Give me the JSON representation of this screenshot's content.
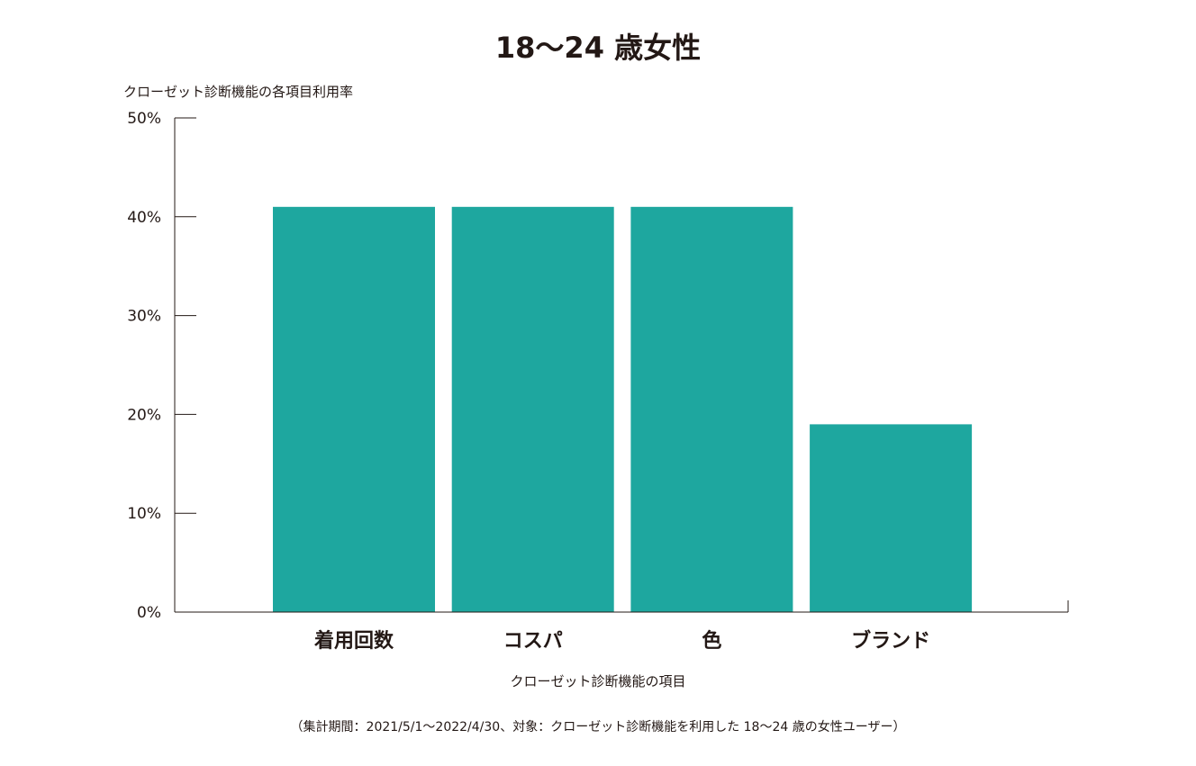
{
  "chart_data": {
    "type": "bar",
    "title": "18〜24 歳女性",
    "ylabel": "クローゼット診断機能の各項目利用率",
    "xlabel": "クローゼット診断機能の項目",
    "categories": [
      "着用回数",
      "コスパ",
      "色",
      "ブランド"
    ],
    "values": [
      41,
      41,
      41,
      19
    ],
    "unit": "%",
    "ylim": [
      0,
      50
    ],
    "yticks": [
      "0%",
      "10%",
      "20%",
      "30%",
      "40%",
      "50%"
    ],
    "grid": false,
    "legend": "none",
    "bar_color": "#1ea79f"
  },
  "footnote": "（集計期間：2021/5/1〜2022/4/30、対象：クローゼット診断機能を利用した 18〜24 歳の女性ユーザー）"
}
